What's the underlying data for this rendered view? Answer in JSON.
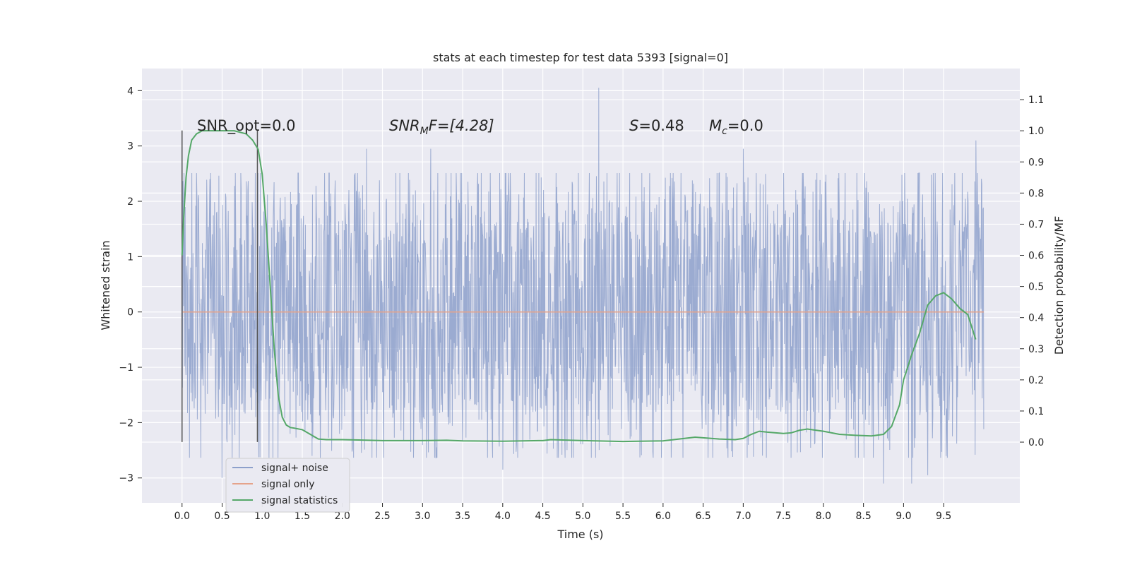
{
  "chart_data": {
    "type": "line",
    "title": "stats at each timestep for test data 5393 [signal=0]",
    "xlabel": "Time (s)",
    "ylabel": "Whitened strain",
    "y2label": "Detection probability/MF",
    "xlim": [
      -0.5,
      10.45
    ],
    "ylim": [
      -3.45,
      4.4
    ],
    "y2lim": [
      -0.195,
      1.2
    ],
    "xticks": [
      0.0,
      0.5,
      1.0,
      1.5,
      2.0,
      2.5,
      3.0,
      3.5,
      4.0,
      4.5,
      5.0,
      5.5,
      6.0,
      6.5,
      7.0,
      7.5,
      8.0,
      8.5,
      9.0,
      9.5
    ],
    "xtick_labels": [
      "0.0",
      "0.5",
      "1.0",
      "1.5",
      "2.0",
      "2.5",
      "3.0",
      "3.5",
      "4.0",
      "4.5",
      "5.0",
      "5.5",
      "6.0",
      "6.5",
      "7.0",
      "7.5",
      "8.0",
      "8.5",
      "9.0",
      "9.5"
    ],
    "yticks": [
      -3,
      -2,
      -1,
      0,
      1,
      2,
      3,
      4
    ],
    "ytick_labels": [
      "−3",
      "−2",
      "−1",
      "0",
      "1",
      "2",
      "3",
      "4"
    ],
    "y2ticks": [
      0.0,
      0.1,
      0.2,
      0.3,
      0.4,
      0.5,
      0.6,
      0.7,
      0.8,
      0.9,
      1.0,
      1.1
    ],
    "y2tick_labels": [
      "0.0",
      "0.1",
      "0.2",
      "0.3",
      "0.4",
      "0.5",
      "0.6",
      "0.7",
      "0.8",
      "0.9",
      "1.0",
      "1.1"
    ],
    "grid": true,
    "legend": {
      "placement": "lower-left",
      "entries": [
        {
          "label": "signal+ noise",
          "color": "#8da0cb"
        },
        {
          "label": "signal only",
          "color": "#e5a38b"
        },
        {
          "label": "signal statistics",
          "color": "#55a868"
        }
      ]
    },
    "annotations": {
      "snr_opt": "SNR_opt=0.0",
      "snr_mf_main": "SNR",
      "snr_mf_sub": "M",
      "snr_mf_rest": "F=[4.28]",
      "s_main": "S",
      "s_rest": "=0.48",
      "mc_main": "M",
      "mc_sub": "c",
      "mc_rest": "=0.0"
    },
    "markers": {
      "vertical_lines_x": [
        0.0,
        0.94
      ],
      "vertical_lines_y": [
        -2.35,
        3.28
      ]
    },
    "series": [
      {
        "name": "signal+ noise",
        "color": "#8da0cb",
        "axis": "left",
        "x_range": [
          0.0,
          10.0
        ],
        "samples": 2048,
        "envelope": {
          "typical_max": 1.6,
          "typical_min": -1.3,
          "peak_max": 4.05,
          "peak_min": -3.1,
          "peaks": [
            {
              "x": 5.2,
              "y": 4.05
            },
            {
              "x": 2.3,
              "y": 2.95
            },
            {
              "x": 3.1,
              "y": 2.95
            },
            {
              "x": 7.0,
              "y": 2.95
            },
            {
              "x": 9.9,
              "y": 3.1
            },
            {
              "x": 8.75,
              "y": -3.1
            },
            {
              "x": 9.1,
              "y": -3.1
            },
            {
              "x": 0.5,
              "y": -3.0
            },
            {
              "x": 4.0,
              "y": -2.85
            },
            {
              "x": 9.3,
              "y": -2.95
            }
          ]
        }
      },
      {
        "name": "signal only",
        "color": "#e5a38b",
        "axis": "left",
        "x": [
          0.0,
          10.0
        ],
        "y": [
          0.0,
          0.0
        ]
      },
      {
        "name": "signal statistics",
        "color": "#55a868",
        "axis": "right",
        "x": [
          0.0,
          0.02,
          0.05,
          0.08,
          0.12,
          0.18,
          0.25,
          0.35,
          0.5,
          0.65,
          0.8,
          0.88,
          0.95,
          1.0,
          1.05,
          1.1,
          1.15,
          1.2,
          1.25,
          1.3,
          1.35,
          1.4,
          1.5,
          1.6,
          1.7,
          1.8,
          2.0,
          2.2,
          2.5,
          3.0,
          3.3,
          3.5,
          4.0,
          4.5,
          4.6,
          5.0,
          5.5,
          6.0,
          6.2,
          6.4,
          6.7,
          6.9,
          7.0,
          7.1,
          7.2,
          7.3,
          7.5,
          7.6,
          7.7,
          7.8,
          8.0,
          8.2,
          8.4,
          8.6,
          8.75,
          8.85,
          8.95,
          9.0,
          9.1,
          9.2,
          9.3,
          9.4,
          9.5,
          9.6,
          9.7,
          9.8,
          9.9
        ],
        "y": [
          0.6,
          0.72,
          0.85,
          0.92,
          0.97,
          0.99,
          1.0,
          1.0,
          1.0,
          1.0,
          0.99,
          0.97,
          0.94,
          0.86,
          0.7,
          0.5,
          0.3,
          0.15,
          0.08,
          0.055,
          0.047,
          0.045,
          0.04,
          0.025,
          0.01,
          0.008,
          0.008,
          0.007,
          0.005,
          0.005,
          0.006,
          0.004,
          0.003,
          0.005,
          0.008,
          0.005,
          0.002,
          0.004,
          0.01,
          0.016,
          0.01,
          0.008,
          0.012,
          0.025,
          0.035,
          0.032,
          0.028,
          0.03,
          0.038,
          0.042,
          0.035,
          0.025,
          0.022,
          0.02,
          0.025,
          0.05,
          0.12,
          0.2,
          0.28,
          0.35,
          0.44,
          0.47,
          0.48,
          0.46,
          0.43,
          0.41,
          0.33
        ]
      }
    ]
  }
}
